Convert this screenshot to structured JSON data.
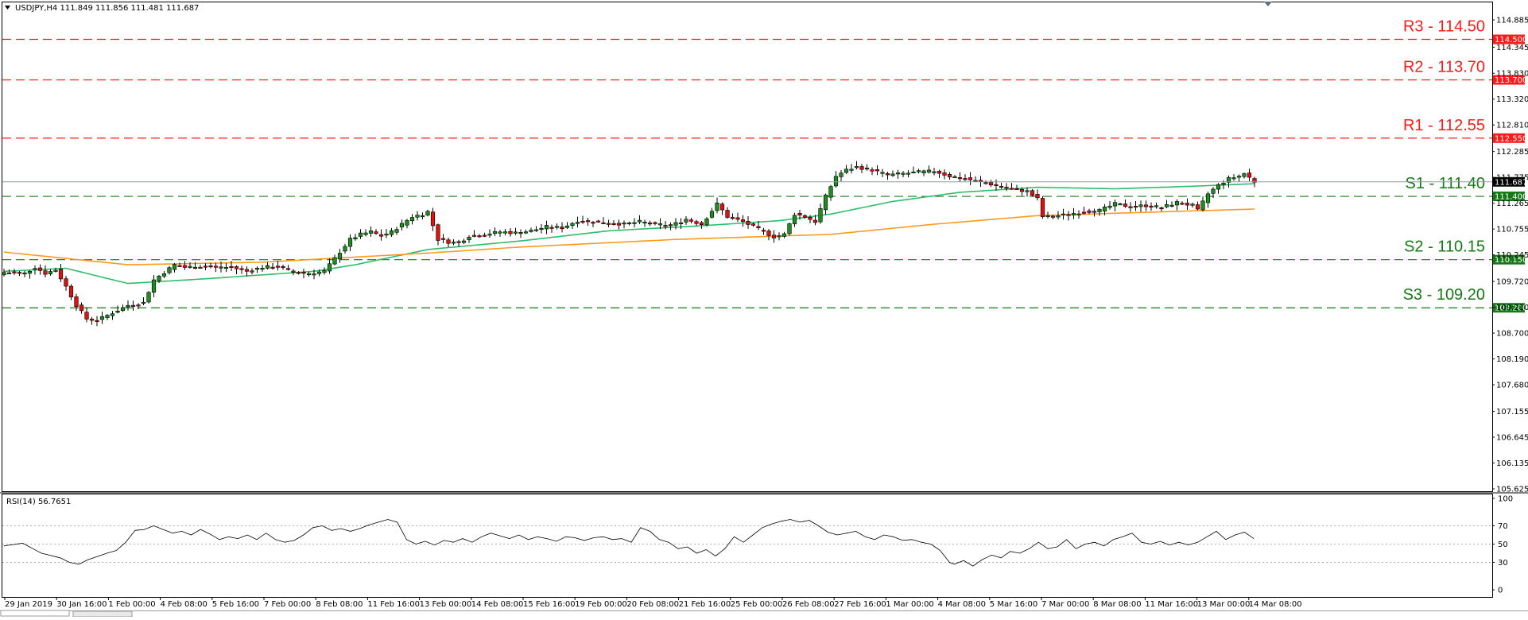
{
  "header": {
    "symbol_info": "USDJPY,H4  111.849 111.856 111.481 111.687",
    "rsi_info": "RSI(14) 56.7651"
  },
  "colors": {
    "bull": "#1e8c1e",
    "bear": "#e01010",
    "ma_fast": "#2ebd6a",
    "ma_slow": "#ff9a1f",
    "resistance": "#ff1a1a",
    "support": "#157a15",
    "rsi_line": "#000000",
    "current_price": "#8e9aa6"
  },
  "chart_data": [
    {
      "type": "candlestick",
      "symbol": "USDJPY",
      "timeframe": "H4",
      "last_price": "111.687",
      "ylim": [
        105.625,
        114.885
      ],
      "y_ticks": [
        "114.885",
        "114.345",
        "113.830",
        "113.320",
        "112.810",
        "112.285",
        "111.775",
        "111.265",
        "110.755",
        "110.245",
        "109.720",
        "109.210",
        "108.700",
        "108.190",
        "107.680",
        "107.155",
        "106.645",
        "106.135",
        "105.625"
      ],
      "x_labels": [
        "29 Jan 2019",
        "30 Jan 16:00",
        "1 Feb 00:00",
        "4 Feb 08:00",
        "5 Feb 16:00",
        "7 Feb 00:00",
        "8 Feb 08:00",
        "11 Feb 16:00",
        "13 Feb 00:00",
        "14 Feb 08:00",
        "15 Feb 16:00",
        "19 Feb 00:00",
        "20 Feb 08:00",
        "21 Feb 16:00",
        "25 Feb 00:00",
        "26 Feb 08:00",
        "27 Feb 16:00",
        "1 Mar 00:00",
        "4 Mar 08:00",
        "5 Mar 16:00",
        "7 Mar 00:00",
        "8 Mar 08:00",
        "11 Mar 16:00",
        "13 Mar 00:00",
        "14 Mar 08:00"
      ],
      "levels": [
        {
          "name": "R3",
          "text": "R3 - 114.50",
          "value": 114.5,
          "tag": "114.500",
          "kind": "resistance"
        },
        {
          "name": "R2",
          "text": "R2 - 113.70",
          "value": 113.7,
          "tag": "113.700",
          "kind": "resistance"
        },
        {
          "name": "R1",
          "text": "R1 - 112.55",
          "value": 112.55,
          "tag": "112.550",
          "kind": "resistance"
        },
        {
          "name": "S1",
          "text": "S1 - 111.40",
          "value": 111.4,
          "tag": "111.400",
          "kind": "support"
        },
        {
          "name": "S2",
          "text": "S2 - 110.15",
          "value": 110.15,
          "tag": "110.150",
          "kind": "support"
        },
        {
          "name": "S3",
          "text": "S3 - 109.20",
          "value": 109.2,
          "tag": "109.200",
          "kind": "support"
        }
      ],
      "close_anchors": [
        [
          0,
          109.9
        ],
        [
          4,
          109.88
        ],
        [
          6,
          110.0
        ],
        [
          8,
          109.88
        ],
        [
          10,
          109.95
        ],
        [
          12,
          109.62
        ],
        [
          14,
          109.25
        ],
        [
          16,
          108.98
        ],
        [
          18,
          108.95
        ],
        [
          21,
          109.1
        ],
        [
          24,
          109.25
        ],
        [
          27,
          109.3
        ],
        [
          29,
          109.75
        ],
        [
          31,
          109.9
        ],
        [
          33,
          110.05
        ],
        [
          35,
          110.0
        ],
        [
          38,
          110.02
        ],
        [
          41,
          110.0
        ],
        [
          44,
          110.0
        ],
        [
          47,
          109.92
        ],
        [
          50,
          110.0
        ],
        [
          53,
          110.02
        ],
        [
          56,
          109.9
        ],
        [
          59,
          109.88
        ],
        [
          62,
          109.92
        ],
        [
          65,
          110.3
        ],
        [
          67,
          110.55
        ],
        [
          69,
          110.65
        ],
        [
          71,
          110.7
        ],
        [
          73,
          110.62
        ],
        [
          75,
          110.7
        ],
        [
          77,
          110.85
        ],
        [
          79,
          111.0
        ],
        [
          81,
          111.05
        ],
        [
          82,
          111.1
        ],
        [
          84,
          110.55
        ],
        [
          86,
          110.5
        ],
        [
          88,
          110.48
        ],
        [
          90,
          110.62
        ],
        [
          93,
          110.65
        ],
        [
          96,
          110.7
        ],
        [
          99,
          110.68
        ],
        [
          102,
          110.72
        ],
        [
          105,
          110.8
        ],
        [
          108,
          110.78
        ],
        [
          111,
          110.92
        ],
        [
          114,
          110.9
        ],
        [
          117,
          110.88
        ],
        [
          120,
          110.85
        ],
        [
          123,
          110.9
        ],
        [
          126,
          110.85
        ],
        [
          129,
          110.82
        ],
        [
          132,
          110.95
        ],
        [
          135,
          110.85
        ],
        [
          138,
          111.25
        ],
        [
          140,
          111.0
        ],
        [
          143,
          110.9
        ],
        [
          146,
          110.75
        ],
        [
          149,
          110.6
        ],
        [
          151,
          110.65
        ],
        [
          153,
          111.05
        ],
        [
          155,
          111.0
        ],
        [
          157,
          110.9
        ],
        [
          159,
          111.4
        ],
        [
          161,
          111.8
        ],
        [
          163,
          111.92
        ],
        [
          165,
          111.98
        ],
        [
          168,
          111.92
        ],
        [
          171,
          111.82
        ],
        [
          174,
          111.85
        ],
        [
          177,
          111.88
        ],
        [
          180,
          111.9
        ],
        [
          183,
          111.8
        ],
        [
          186,
          111.75
        ],
        [
          189,
          111.68
        ],
        [
          192,
          111.62
        ],
        [
          195,
          111.55
        ],
        [
          198,
          111.5
        ],
        [
          200,
          111.35
        ],
        [
          201,
          111.0
        ],
        [
          203,
          111.0
        ],
        [
          206,
          111.05
        ],
        [
          209,
          111.1
        ],
        [
          212,
          111.12
        ],
        [
          215,
          111.25
        ],
        [
          218,
          111.2
        ],
        [
          221,
          111.22
        ],
        [
          224,
          111.18
        ],
        [
          227,
          111.28
        ],
        [
          230,
          111.22
        ],
        [
          231,
          111.12
        ],
        [
          233,
          111.45
        ],
        [
          235,
          111.62
        ],
        [
          237,
          111.75
        ],
        [
          239,
          111.8
        ],
        [
          240,
          111.85
        ],
        [
          242,
          111.69
        ]
      ],
      "ma_fast_anchors": [
        [
          0,
          109.92
        ],
        [
          12,
          109.98
        ],
        [
          24,
          109.68
        ],
        [
          40,
          109.78
        ],
        [
          60,
          109.92
        ],
        [
          68,
          110.05
        ],
        [
          82,
          110.35
        ],
        [
          100,
          110.52
        ],
        [
          117,
          110.72
        ],
        [
          135,
          110.82
        ],
        [
          150,
          110.92
        ],
        [
          160,
          111.05
        ],
        [
          172,
          111.3
        ],
        [
          185,
          111.48
        ],
        [
          200,
          111.58
        ],
        [
          215,
          111.55
        ],
        [
          230,
          111.6
        ],
        [
          242,
          111.65
        ]
      ],
      "ma_slow_anchors": [
        [
          0,
          110.3
        ],
        [
          24,
          110.05
        ],
        [
          50,
          110.1
        ],
        [
          82,
          110.28
        ],
        [
          100,
          110.4
        ],
        [
          130,
          110.55
        ],
        [
          160,
          110.65
        ],
        [
          180,
          110.85
        ],
        [
          200,
          111.02
        ],
        [
          242,
          111.15
        ]
      ]
    },
    {
      "type": "line",
      "name": "RSI(14)",
      "ylim": [
        0,
        100
      ],
      "y_ticks": [
        "100",
        "70",
        "50",
        "30",
        "0"
      ],
      "anchors": [
        [
          0,
          48
        ],
        [
          4,
          51
        ],
        [
          8,
          40
        ],
        [
          12,
          35
        ],
        [
          14,
          30
        ],
        [
          16,
          28
        ],
        [
          18,
          33
        ],
        [
          22,
          40
        ],
        [
          24,
          43
        ],
        [
          26,
          52
        ],
        [
          28,
          65
        ],
        [
          30,
          66
        ],
        [
          32,
          70
        ],
        [
          34,
          66
        ],
        [
          36,
          62
        ],
        [
          38,
          64
        ],
        [
          40,
          60
        ],
        [
          42,
          66
        ],
        [
          44,
          61
        ],
        [
          46,
          55
        ],
        [
          48,
          58
        ],
        [
          50,
          56
        ],
        [
          52,
          60
        ],
        [
          54,
          55
        ],
        [
          56,
          62
        ],
        [
          58,
          55
        ],
        [
          60,
          52
        ],
        [
          62,
          54
        ],
        [
          64,
          60
        ],
        [
          66,
          68
        ],
        [
          68,
          70
        ],
        [
          70,
          65
        ],
        [
          72,
          67
        ],
        [
          74,
          64
        ],
        [
          76,
          67
        ],
        [
          78,
          71
        ],
        [
          80,
          74
        ],
        [
          82,
          77
        ],
        [
          84,
          74
        ],
        [
          86,
          55
        ],
        [
          88,
          50
        ],
        [
          90,
          53
        ],
        [
          92,
          49
        ],
        [
          94,
          54
        ],
        [
          96,
          52
        ],
        [
          98,
          56
        ],
        [
          100,
          52
        ],
        [
          102,
          58
        ],
        [
          104,
          62
        ],
        [
          106,
          59
        ],
        [
          108,
          56
        ],
        [
          110,
          60
        ],
        [
          112,
          55
        ],
        [
          114,
          58
        ],
        [
          116,
          56
        ],
        [
          118,
          53
        ],
        [
          120,
          58
        ],
        [
          122,
          57
        ],
        [
          124,
          54
        ],
        [
          126,
          57
        ],
        [
          128,
          58
        ],
        [
          130,
          55
        ],
        [
          132,
          56
        ],
        [
          134,
          52
        ],
        [
          136,
          68
        ],
        [
          138,
          64
        ],
        [
          140,
          55
        ],
        [
          142,
          52
        ],
        [
          144,
          45
        ],
        [
          146,
          47
        ],
        [
          148,
          40
        ],
        [
          150,
          44
        ],
        [
          152,
          37
        ],
        [
          154,
          45
        ],
        [
          156,
          58
        ],
        [
          158,
          52
        ],
        [
          160,
          60
        ],
        [
          162,
          68
        ],
        [
          164,
          72
        ],
        [
          166,
          75
        ],
        [
          168,
          77
        ],
        [
          170,
          74
        ],
        [
          172,
          76
        ],
        [
          174,
          70
        ],
        [
          176,
          63
        ],
        [
          178,
          60
        ],
        [
          180,
          62
        ],
        [
          182,
          64
        ],
        [
          184,
          58
        ],
        [
          186,
          55
        ],
        [
          188,
          60
        ],
        [
          190,
          58
        ],
        [
          192,
          54
        ],
        [
          194,
          55
        ],
        [
          196,
          52
        ],
        [
          198,
          50
        ],
        [
          200,
          43
        ],
        [
          202,
          30
        ],
        [
          203,
          28
        ],
        [
          205,
          32
        ],
        [
          207,
          26
        ],
        [
          209,
          33
        ],
        [
          211,
          38
        ],
        [
          213,
          35
        ],
        [
          215,
          42
        ],
        [
          217,
          40
        ],
        [
          219,
          45
        ],
        [
          221,
          52
        ],
        [
          223,
          45
        ],
        [
          225,
          47
        ],
        [
          227,
          55
        ],
        [
          229,
          45
        ],
        [
          231,
          50
        ],
        [
          233,
          52
        ],
        [
          235,
          48
        ],
        [
          237,
          55
        ],
        [
          239,
          58
        ],
        [
          241,
          62
        ],
        [
          243,
          52
        ],
        [
          245,
          50
        ],
        [
          247,
          53
        ],
        [
          249,
          49
        ],
        [
          251,
          52
        ],
        [
          253,
          49
        ],
        [
          255,
          52
        ],
        [
          257,
          58
        ],
        [
          259,
          64
        ],
        [
          261,
          55
        ],
        [
          263,
          60
        ],
        [
          265,
          63
        ],
        [
          267,
          56
        ]
      ]
    }
  ]
}
